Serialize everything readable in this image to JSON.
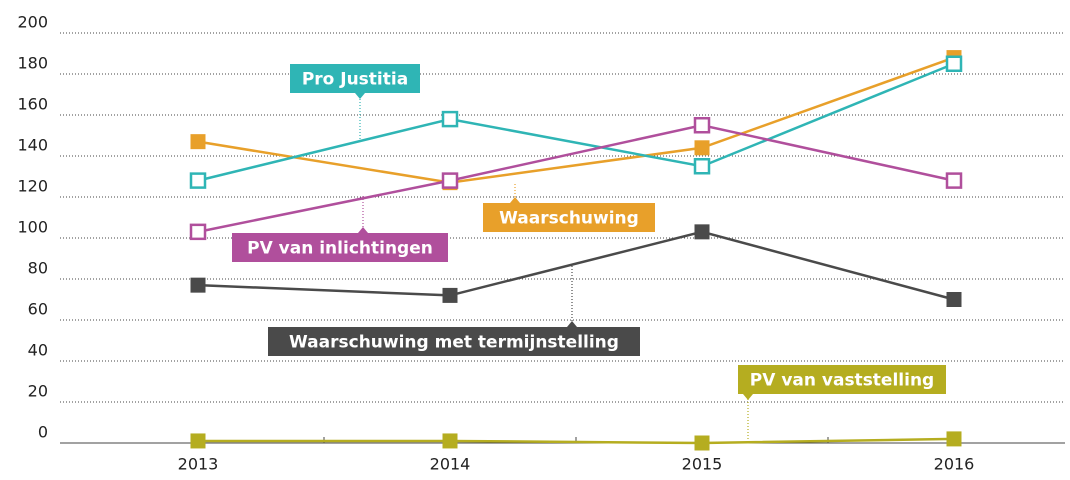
{
  "chart_data": {
    "type": "line",
    "categories": [
      "2013",
      "2014",
      "2015",
      "2016"
    ],
    "series": [
      {
        "name": "Waarschuwing",
        "color": "#e8a02a",
        "marker": "square",
        "values": [
          147,
          127,
          144,
          188
        ]
      },
      {
        "name": "Pro Justitia",
        "color": "#2fb5b5",
        "marker": "open-square",
        "values": [
          128,
          158,
          135,
          185
        ]
      },
      {
        "name": "PV van inlichtingen",
        "color": "#b04f9c",
        "marker": "open-square",
        "values": [
          103,
          128,
          155,
          128
        ]
      },
      {
        "name": "Waarschuwing met termijnstelling",
        "color": "#4a4a4a",
        "marker": "square",
        "values": [
          77,
          72,
          103,
          70
        ]
      },
      {
        "name": "PV van vaststelling",
        "color": "#b5ad20",
        "marker": "square",
        "values": [
          1,
          1,
          0,
          2
        ]
      }
    ],
    "ylim": [
      0,
      200
    ],
    "yticks": [
      0,
      20,
      40,
      60,
      80,
      100,
      120,
      140,
      160,
      180,
      200
    ],
    "grid": true
  }
}
